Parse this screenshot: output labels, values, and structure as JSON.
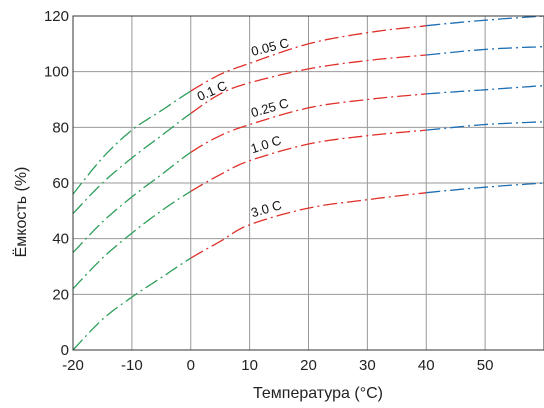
{
  "chart_data": {
    "type": "line",
    "xlabel": "Температура (°C)",
    "ylabel": "Ёмкость (%)",
    "xlim": [
      -20,
      60
    ],
    "ylim": [
      0,
      120
    ],
    "x_ticks": [
      "-20",
      "-10",
      "0",
      "10",
      "20",
      "30",
      "40",
      "50"
    ],
    "y_ticks": [
      "0",
      "20",
      "40",
      "60",
      "80",
      "100",
      "120"
    ],
    "grid": true,
    "colors": {
      "low": "#2e9e5b",
      "mid": "#e0302a",
      "high": "#1f6fb5",
      "grid": "#999999"
    },
    "series": [
      {
        "name": "0.05 C",
        "x": [
          -20,
          -15,
          -10,
          -5,
          0,
          5,
          10,
          20,
          30,
          40,
          50,
          60
        ],
        "y": [
          56,
          69,
          79,
          86,
          93,
          99,
          103,
          110,
          114,
          116.5,
          118.5,
          120
        ]
      },
      {
        "name": "0.1 C",
        "x": [
          -20,
          -15,
          -10,
          -5,
          0,
          5,
          10,
          20,
          30,
          40,
          50,
          60
        ],
        "y": [
          49,
          60,
          69,
          77,
          85,
          92,
          96,
          101,
          104,
          106,
          108,
          109
        ]
      },
      {
        "name": "0.25 C",
        "x": [
          -20,
          -15,
          -10,
          -5,
          0,
          5,
          10,
          20,
          30,
          40,
          50,
          60
        ],
        "y": [
          35,
          46,
          55,
          63,
          71,
          77,
          81,
          87,
          90,
          92,
          93.5,
          95
        ]
      },
      {
        "name": "1.0 C",
        "x": [
          -20,
          -15,
          -10,
          -5,
          0,
          5,
          10,
          20,
          30,
          40,
          50,
          60
        ],
        "y": [
          22,
          33,
          42,
          50,
          57,
          63,
          68,
          74,
          77,
          79,
          81,
          82
        ]
      },
      {
        "name": "3.0 C",
        "x": [
          -20,
          -15,
          -10,
          -5,
          0,
          5,
          10,
          20,
          30,
          40,
          50,
          60
        ],
        "y": [
          0,
          11,
          19,
          26,
          33,
          39,
          45,
          51,
          54,
          56.5,
          58.5,
          60
        ]
      }
    ]
  }
}
